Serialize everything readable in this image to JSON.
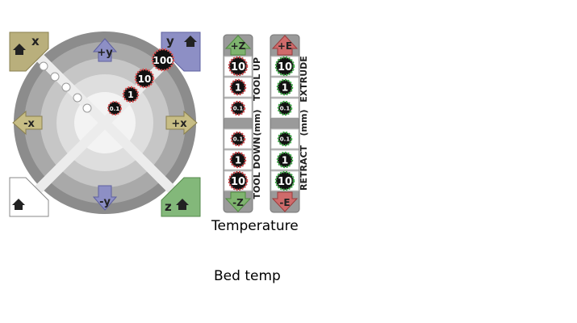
{
  "xy_pad": {
    "home_x": "x",
    "home_y": "y",
    "home_z": "z",
    "plus_y": "+y",
    "minus_y": "-y",
    "minus_x": "-x",
    "plus_x": "+x",
    "step_100": "100",
    "step_10": "10",
    "step_1": "1",
    "step_01": "0.1"
  },
  "z_panel": {
    "up_label": "+Z",
    "down_label": "-Z",
    "side_top": "TOOL UP",
    "side_bottom": "TOOL DOWN",
    "unit": "(mm)",
    "steps_up": [
      "10",
      "1",
      "0.1"
    ],
    "steps_down": [
      "0.1",
      "1",
      "10"
    ],
    "accent": "#c8474a"
  },
  "e_panel": {
    "up_label": "+E",
    "down_label": "-E",
    "side_top": "EXTRUDE",
    "side_bottom": "RETRACT",
    "unit": "(mm)",
    "steps_up": [
      "10",
      "1",
      "0.1"
    ],
    "steps_down": [
      "0.1",
      "1",
      "10"
    ],
    "accent": "#3fa847"
  },
  "sections": {
    "temperature": "Temperature",
    "bed_temp": "Bed temp"
  }
}
